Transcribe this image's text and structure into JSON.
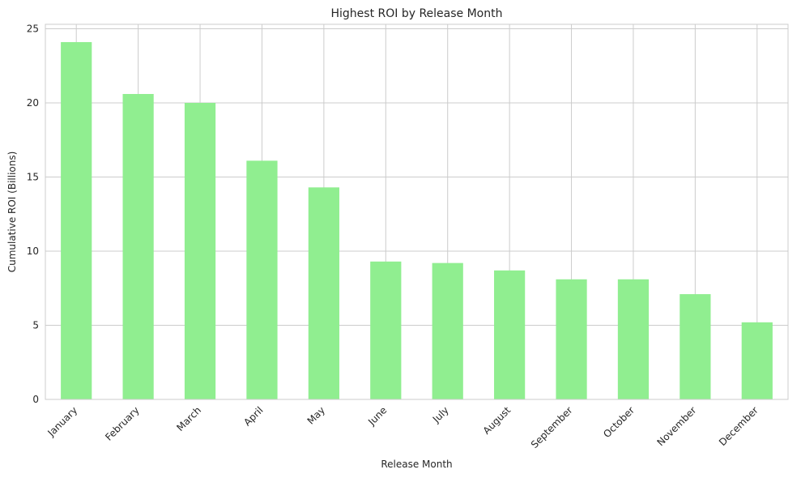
{
  "chart_data": {
    "type": "bar",
    "title": "Highest ROI by Release Month",
    "xlabel": "Release Month",
    "ylabel": "Cumulative ROI (Billions)",
    "categories": [
      "January",
      "February",
      "March",
      "April",
      "May",
      "June",
      "July",
      "August",
      "September",
      "October",
      "November",
      "December"
    ],
    "values": [
      24.1,
      20.6,
      20.0,
      16.1,
      14.3,
      9.3,
      9.2,
      8.7,
      8.1,
      8.1,
      7.1,
      5.2
    ],
    "ylim": [
      0,
      25.3
    ],
    "yticks": [
      0,
      5,
      10,
      15,
      20,
      25
    ],
    "grid": true,
    "bar_color": "#90ee90",
    "grid_color": "#cccccc"
  }
}
